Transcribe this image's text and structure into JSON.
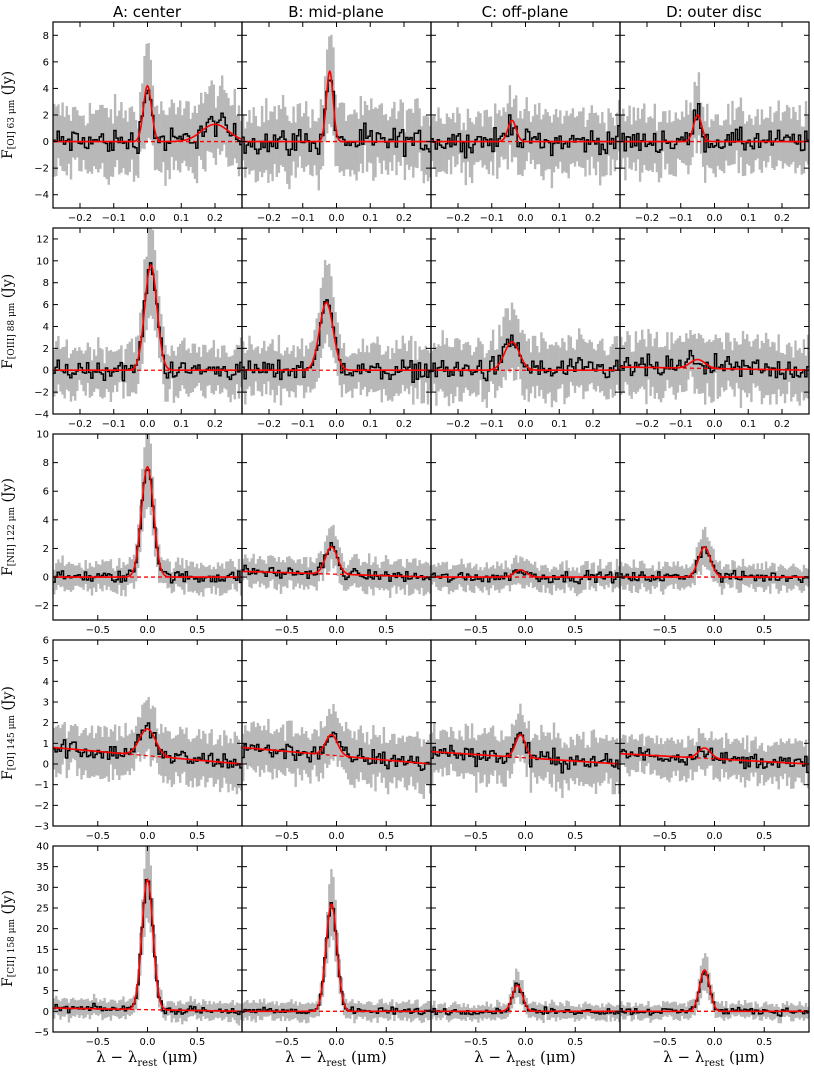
{
  "columns": [
    "A: center",
    "B: mid-plane",
    "C: off-plane",
    "D: outer disc"
  ],
  "x_label": {
    "main": "λ − λ",
    "sub": "rest",
    "unit": " (μm)"
  },
  "rows": [
    {
      "line_main": "F",
      "line_sub": "[OI] 63 μm",
      "unit": " (Jy)"
    },
    {
      "line_main": "F",
      "line_sub": "[OIII] 88 μm",
      "unit": " (Jy)"
    },
    {
      "line_main": "F",
      "line_sub": "[NII] 122 μm",
      "unit": " (Jy)"
    },
    {
      "line_main": "F",
      "line_sub": "[OI] 145 μm",
      "unit": " (Jy)"
    },
    {
      "line_main": "F",
      "line_sub": "[CII] 158 μm",
      "unit": " (Jy)"
    }
  ],
  "colors": {
    "spectrum": "#000000",
    "error": "#b8b8b8",
    "fit": "#ff0000",
    "continuum": "#ff0000"
  },
  "chart_data": [
    {
      "type": "line",
      "row": 0,
      "xlim": [
        -0.28,
        0.28
      ],
      "ylim": [
        -5,
        9
      ],
      "xticks": [
        -0.2,
        -0.1,
        0.0,
        0.1,
        0.2
      ],
      "yticks": [
        -4,
        -2,
        0,
        2,
        4,
        6,
        8
      ],
      "panels": [
        {
          "column": "A: center",
          "peak_center": 0.0,
          "peak_amp": 4.2,
          "peak_width": 0.012,
          "cont_start": 0.0,
          "cont_end": 0.0,
          "noise": 2.2,
          "wing_bump": {
            "center": 0.2,
            "amp": 1.3,
            "width": 0.04
          }
        },
        {
          "column": "B: mid-plane",
          "peak_center": -0.02,
          "peak_amp": 5.3,
          "peak_width": 0.01,
          "cont_start": 0.0,
          "cont_end": 0.0,
          "noise": 2.2
        },
        {
          "column": "C: off-plane",
          "peak_center": -0.04,
          "peak_amp": 1.6,
          "peak_width": 0.012,
          "cont_start": 0.0,
          "cont_end": 0.0,
          "noise": 2.0
        },
        {
          "column": "D: outer disc",
          "peak_center": -0.05,
          "peak_amp": 2.0,
          "peak_width": 0.012,
          "cont_start": 0.0,
          "cont_end": 0.0,
          "noise": 2.0
        }
      ]
    },
    {
      "type": "line",
      "row": 1,
      "xlim": [
        -0.28,
        0.28
      ],
      "ylim": [
        -4,
        13
      ],
      "xticks": [
        -0.2,
        -0.1,
        0.0,
        0.1,
        0.2
      ],
      "yticks": [
        -4,
        -2,
        0,
        2,
        4,
        6,
        8,
        10,
        12
      ],
      "panels": [
        {
          "column": "A: center",
          "peak_center": 0.01,
          "peak_amp": 9.6,
          "peak_width": 0.018,
          "cont_start": 0.0,
          "cont_end": 0.0,
          "noise": 2.0
        },
        {
          "column": "B: mid-plane",
          "peak_center": -0.03,
          "peak_amp": 6.2,
          "peak_width": 0.02,
          "cont_start": 0.0,
          "cont_end": 0.0,
          "noise": 2.0
        },
        {
          "column": "C: off-plane",
          "peak_center": -0.04,
          "peak_amp": 2.6,
          "peak_width": 0.022,
          "cont_start": 0.0,
          "cont_end": 0.0,
          "noise": 2.3
        },
        {
          "column": "D: outer disc",
          "peak_center": -0.05,
          "peak_amp": 0.8,
          "peak_width": 0.022,
          "cont_start": 0.3,
          "cont_end": 0.0,
          "noise": 2.3
        }
      ]
    },
    {
      "type": "line",
      "row": 2,
      "xlim": [
        -0.95,
        0.95
      ],
      "ylim": [
        -3,
        10
      ],
      "xticks": [
        -0.5,
        0.0,
        0.5
      ],
      "yticks": [
        -2,
        0,
        2,
        4,
        6,
        8,
        10
      ],
      "panels": [
        {
          "column": "A: center",
          "peak_center": 0.0,
          "peak_amp": 7.7,
          "peak_width": 0.06,
          "cont_start": 0.0,
          "cont_end": 0.0,
          "noise": 0.9
        },
        {
          "column": "B: mid-plane",
          "peak_center": -0.05,
          "peak_amp": 1.9,
          "peak_width": 0.06,
          "cont_start": 0.4,
          "cont_end": 0.0,
          "noise": 0.9
        },
        {
          "column": "C: off-plane",
          "peak_center": -0.05,
          "peak_amp": 0.5,
          "peak_width": 0.06,
          "cont_start": 0.0,
          "cont_end": 0.0,
          "noise": 0.8
        },
        {
          "column": "D: outer disc",
          "peak_center": -0.1,
          "peak_amp": 2.1,
          "peak_width": 0.06,
          "cont_start": 0.0,
          "cont_end": 0.0,
          "noise": 0.8
        }
      ]
    },
    {
      "type": "line",
      "row": 3,
      "xlim": [
        -0.95,
        0.95
      ],
      "ylim": [
        -3,
        6
      ],
      "xticks": [
        -0.5,
        0.0,
        0.5
      ],
      "yticks": [
        -3,
        -2,
        -1,
        0,
        1,
        2,
        3,
        4,
        5,
        6
      ],
      "panels": [
        {
          "column": "A: center",
          "peak_center": 0.0,
          "peak_amp": 1.3,
          "peak_width": 0.08,
          "cont_start": 0.8,
          "cont_end": 0.0,
          "noise": 1.0
        },
        {
          "column": "B: mid-plane",
          "peak_center": -0.05,
          "peak_amp": 1.0,
          "peak_width": 0.06,
          "cont_start": 0.8,
          "cont_end": 0.0,
          "noise": 1.0
        },
        {
          "column": "C: off-plane",
          "peak_center": -0.05,
          "peak_amp": 1.1,
          "peak_width": 0.05,
          "cont_start": 0.6,
          "cont_end": 0.0,
          "noise": 1.0
        },
        {
          "column": "D: outer disc",
          "peak_center": -0.1,
          "peak_amp": 0.5,
          "peak_width": 0.06,
          "cont_start": 0.5,
          "cont_end": 0.0,
          "noise": 0.8
        }
      ]
    },
    {
      "type": "line",
      "row": 4,
      "xlim": [
        -0.95,
        0.95
      ],
      "ylim": [
        -5,
        40
      ],
      "xticks": [
        -0.5,
        0.0,
        0.5
      ],
      "yticks": [
        -5,
        0,
        5,
        10,
        15,
        20,
        25,
        30,
        35,
        40
      ],
      "panels": [
        {
          "column": "A: center",
          "peak_center": 0.0,
          "peak_amp": 31.5,
          "peak_width": 0.055,
          "cont_start": 0.8,
          "cont_end": 0.0,
          "noise": 2.0
        },
        {
          "column": "B: mid-plane",
          "peak_center": -0.05,
          "peak_amp": 26.0,
          "peak_width": 0.055,
          "cont_start": 0.0,
          "cont_end": 0.0,
          "noise": 2.0
        },
        {
          "column": "C: off-plane",
          "peak_center": -0.08,
          "peak_amp": 6.3,
          "peak_width": 0.05,
          "cont_start": 0.0,
          "cont_end": 0.0,
          "noise": 1.8
        },
        {
          "column": "D: outer disc",
          "peak_center": -0.1,
          "peak_amp": 10.0,
          "peak_width": 0.05,
          "cont_start": 0.0,
          "cont_end": 0.0,
          "noise": 1.8
        }
      ]
    }
  ]
}
